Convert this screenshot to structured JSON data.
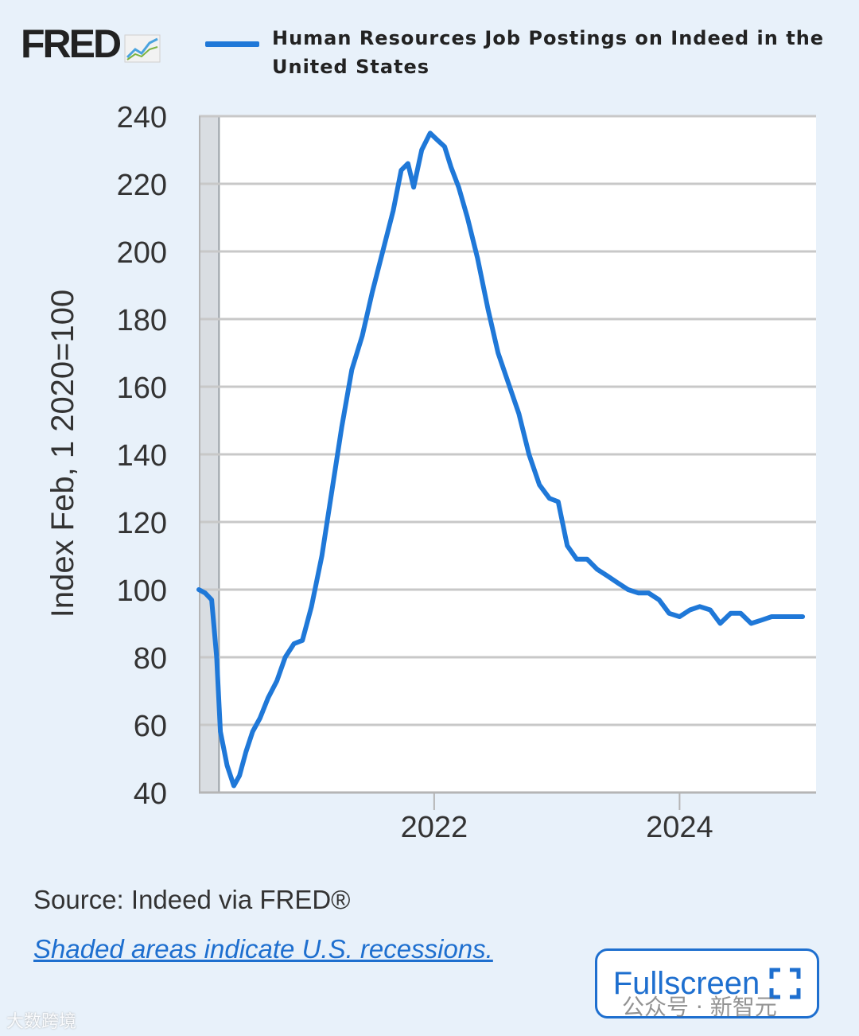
{
  "brand": {
    "name": "FRED"
  },
  "colors": {
    "series": "#1f78d8",
    "grid": "#c8c8c8",
    "accent": "#1e6fcf",
    "recession": "#d9dde2"
  },
  "chart_data": {
    "type": "line",
    "title": "Human Resources Job Postings on Indeed in the United States",
    "ylabel": "Index Feb, 1 2020=100",
    "xlabel": "",
    "ylim": [
      40,
      240
    ],
    "xlim": [
      "2020-02-01",
      "2025-02-10"
    ],
    "yticks": [
      "40",
      "60",
      "80",
      "100",
      "120",
      "140",
      "160",
      "180",
      "200",
      "220",
      "240"
    ],
    "xticks": [
      {
        "label": "2022",
        "date": "2022-01-01"
      },
      {
        "label": "2024",
        "date": "2024-01-01"
      }
    ],
    "grid": true,
    "recessions": [
      {
        "start": "2020-02-01",
        "end": "2020-04-01"
      }
    ],
    "series": [
      {
        "name": "Human Resources Job Postings on Indeed in the United States",
        "points": [
          [
            "2020-02-01",
            100
          ],
          [
            "2020-02-20",
            99
          ],
          [
            "2020-03-10",
            97
          ],
          [
            "2020-03-25",
            80
          ],
          [
            "2020-04-05",
            58
          ],
          [
            "2020-04-25",
            48
          ],
          [
            "2020-05-15",
            42
          ],
          [
            "2020-06-01",
            45
          ],
          [
            "2020-06-20",
            52
          ],
          [
            "2020-07-10",
            58
          ],
          [
            "2020-08-01",
            62
          ],
          [
            "2020-08-25",
            68
          ],
          [
            "2020-09-20",
            73
          ],
          [
            "2020-10-15",
            80
          ],
          [
            "2020-11-10",
            84
          ],
          [
            "2020-12-05",
            85
          ],
          [
            "2021-01-01",
            95
          ],
          [
            "2021-02-01",
            110
          ],
          [
            "2021-03-01",
            128
          ],
          [
            "2021-04-01",
            148
          ],
          [
            "2021-05-01",
            165
          ],
          [
            "2021-06-01",
            175
          ],
          [
            "2021-07-01",
            188
          ],
          [
            "2021-08-01",
            200
          ],
          [
            "2021-09-01",
            212
          ],
          [
            "2021-09-25",
            224
          ],
          [
            "2021-10-15",
            226
          ],
          [
            "2021-11-01",
            219
          ],
          [
            "2021-11-25",
            230
          ],
          [
            "2021-12-20",
            235
          ],
          [
            "2022-01-10",
            233
          ],
          [
            "2022-02-01",
            231
          ],
          [
            "2022-02-20",
            225
          ],
          [
            "2022-03-15",
            219
          ],
          [
            "2022-04-10",
            210
          ],
          [
            "2022-05-10",
            198
          ],
          [
            "2022-06-10",
            183
          ],
          [
            "2022-07-10",
            170
          ],
          [
            "2022-08-10",
            161
          ],
          [
            "2022-09-10",
            152
          ],
          [
            "2022-10-10",
            140
          ],
          [
            "2022-11-10",
            131
          ],
          [
            "2022-12-10",
            127
          ],
          [
            "2023-01-05",
            126
          ],
          [
            "2023-02-01",
            113
          ],
          [
            "2023-03-01",
            109
          ],
          [
            "2023-04-01",
            109
          ],
          [
            "2023-05-01",
            106
          ],
          [
            "2023-06-01",
            104
          ],
          [
            "2023-07-01",
            102
          ],
          [
            "2023-08-01",
            100
          ],
          [
            "2023-09-01",
            99
          ],
          [
            "2023-10-01",
            99
          ],
          [
            "2023-11-01",
            97
          ],
          [
            "2023-12-01",
            93
          ],
          [
            "2024-01-01",
            92
          ],
          [
            "2024-02-01",
            94
          ],
          [
            "2024-03-01",
            95
          ],
          [
            "2024-04-01",
            94
          ],
          [
            "2024-05-01",
            90
          ],
          [
            "2024-06-01",
            93
          ],
          [
            "2024-07-01",
            93
          ],
          [
            "2024-08-01",
            90
          ],
          [
            "2024-09-01",
            91
          ],
          [
            "2024-10-01",
            92
          ],
          [
            "2025-01-01",
            92
          ]
        ]
      }
    ]
  },
  "footer": {
    "source": "Source: Indeed via FRED®",
    "recession_note": "Shaded areas indicate U.S. recessions.",
    "fullscreen_label": "Fullscreen"
  },
  "watermarks": {
    "left": "大数跨境",
    "right": "公众号 · 新智元"
  }
}
